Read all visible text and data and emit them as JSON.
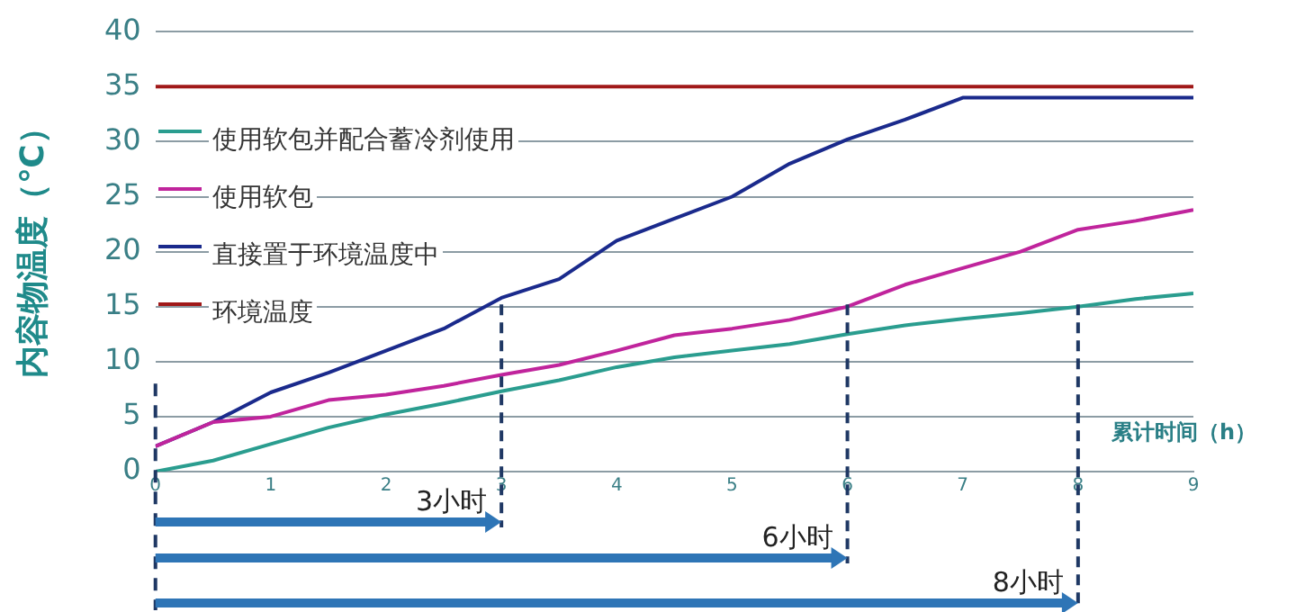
{
  "chart_data": {
    "type": "line",
    "xlabel": "累计时间（h）",
    "ylabel": "内容物温度（℃）",
    "xlim": [
      0,
      9
    ],
    "xticks": [
      0,
      1,
      2,
      3,
      4,
      5,
      6,
      7,
      8,
      9
    ],
    "ylim": [
      0,
      40
    ],
    "yticks": [
      0,
      5,
      10,
      15,
      20,
      25,
      30,
      35,
      40
    ],
    "grid": "y",
    "legend": "top left",
    "marker": "none",
    "line_style": "solid",
    "x": [
      0,
      0.5,
      1,
      1.5,
      2,
      2.5,
      3,
      3.5,
      4,
      4.5,
      5,
      5.5,
      6,
      6.5,
      7,
      7.5,
      8,
      8.5,
      9
    ],
    "series": [
      {
        "name": "使用软包并配合蓄冷剂使用",
        "color": "#2a9d8f",
        "values": [
          0,
          1,
          2.5,
          4,
          5.2,
          6.2,
          7.3,
          8.3,
          9.5,
          10.4,
          11,
          11.6,
          12.5,
          13.3,
          13.9,
          14.4,
          15,
          15.7,
          16.2
        ]
      },
      {
        "name": "使用软包",
        "color": "#c0249c",
        "values": [
          2.3,
          4.5,
          5,
          6.5,
          7,
          7.8,
          8.8,
          9.7,
          11,
          12.4,
          13,
          13.8,
          15,
          17,
          18.5,
          20,
          22,
          22.8,
          23.8
        ]
      },
      {
        "name": "直接置于环境温度中",
        "color": "#1a2a8c",
        "values": [
          2.3,
          4.5,
          7.2,
          9,
          11,
          13,
          15.8,
          17.5,
          21,
          23,
          25,
          28,
          30.2,
          32,
          34,
          34,
          34,
          34,
          34
        ]
      },
      {
        "name": "环境温度",
        "color": "#a01818",
        "x": [
          0,
          9
        ],
        "values": [
          35,
          35
        ]
      }
    ],
    "ref_lines": [
      {
        "axis": "x",
        "value": 3,
        "label": "3小时",
        "color": "#1f3864",
        "line_style": "dashed"
      },
      {
        "axis": "x",
        "value": 6,
        "label": "6小时",
        "color": "#1f3864",
        "line_style": "dashed"
      },
      {
        "axis": "x",
        "value": 8,
        "label": "8小时",
        "color": "#1f3864",
        "line_style": "dashed"
      }
    ]
  }
}
